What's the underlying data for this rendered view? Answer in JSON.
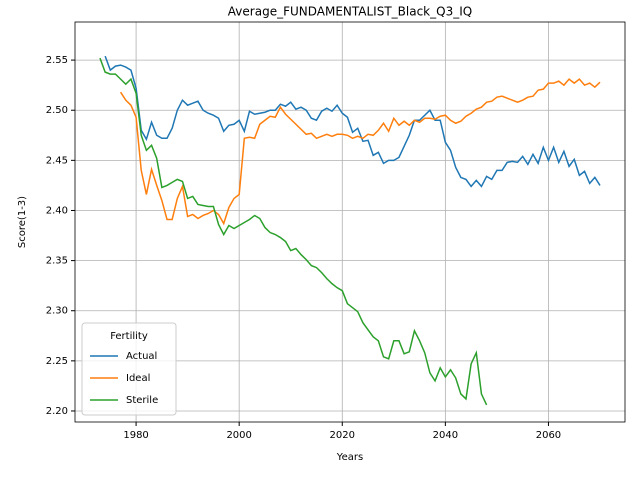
{
  "chart_data": {
    "type": "line",
    "title": "Average_FUNDAMENTALIST_Black_Q3_IQ",
    "x_label": "Years",
    "y_label": "Score(1-3)",
    "x": [
      1973,
      1974,
      1975,
      1976,
      1977,
      1978,
      1979,
      1980,
      1981,
      1982,
      1983,
      1984,
      1985,
      1986,
      1987,
      1988,
      1989,
      1990,
      1991,
      1992,
      1993,
      1994,
      1995,
      1996,
      1997,
      1998,
      1999,
      2000,
      2001,
      2002,
      2003,
      2004,
      2005,
      2006,
      2007,
      2008,
      2009,
      2010,
      2011,
      2012,
      2013,
      2014,
      2015,
      2016,
      2017,
      2018,
      2019,
      2020,
      2021,
      2022,
      2023,
      2024,
      2025,
      2026,
      2027,
      2028,
      2029,
      2030,
      2031,
      2032,
      2033,
      2034,
      2035,
      2036,
      2037,
      2038,
      2039,
      2040,
      2041,
      2042,
      2043,
      2044,
      2045,
      2046,
      2047,
      2048,
      2049,
      2050,
      2051,
      2052,
      2053,
      2054,
      2055,
      2056,
      2057,
      2058,
      2059,
      2060,
      2061,
      2062,
      2063,
      2064,
      2065,
      2066,
      2067,
      2068,
      2069,
      2070
    ],
    "series": [
      {
        "name": "Actual",
        "color": "#1f77b4",
        "values": [
          null,
          2.554,
          2.54,
          2.544,
          2.545,
          2.543,
          2.54,
          2.522,
          2.48,
          2.471,
          2.488,
          2.475,
          2.472,
          2.472,
          2.482,
          2.5,
          2.51,
          2.505,
          2.507,
          2.509,
          2.5,
          2.497,
          2.495,
          2.492,
          2.479,
          2.485,
          2.486,
          2.49,
          2.479,
          2.499,
          2.496,
          2.497,
          2.498,
          2.5,
          2.5,
          2.506,
          2.504,
          2.508,
          2.501,
          2.503,
          2.5,
          2.492,
          2.49,
          2.499,
          2.502,
          2.499,
          2.505,
          2.497,
          2.493,
          2.478,
          2.482,
          2.469,
          2.47,
          2.455,
          2.458,
          2.447,
          2.45,
          2.45,
          2.453,
          2.464,
          2.475,
          2.49,
          2.49,
          2.495,
          2.5,
          2.49,
          2.49,
          2.468,
          2.46,
          2.443,
          2.433,
          2.431,
          2.424,
          2.43,
          2.424,
          2.434,
          2.431,
          2.44,
          2.44,
          2.448,
          2.449,
          2.448,
          2.454,
          2.446,
          2.456,
          2.447,
          2.463,
          2.45,
          2.463,
          2.448,
          2.459,
          2.444,
          2.451,
          2.435,
          2.439,
          2.427,
          2.433,
          2.425
        ]
      },
      {
        "name": "Ideal",
        "color": "#ff7f0e",
        "values": [
          null,
          null,
          null,
          null,
          2.518,
          2.51,
          2.505,
          2.493,
          2.44,
          2.416,
          2.441,
          2.425,
          2.41,
          2.391,
          2.391,
          2.412,
          2.424,
          2.394,
          2.396,
          2.392,
          2.395,
          2.397,
          2.4,
          2.396,
          2.387,
          2.403,
          2.412,
          2.416,
          2.472,
          2.473,
          2.472,
          2.486,
          2.49,
          2.494,
          2.493,
          2.503,
          2.496,
          2.491,
          2.486,
          2.481,
          2.476,
          2.477,
          2.472,
          2.474,
          2.476,
          2.474,
          2.476,
          2.476,
          2.475,
          2.472,
          2.474,
          2.472,
          2.476,
          2.475,
          2.48,
          2.487,
          2.479,
          2.492,
          2.485,
          2.489,
          2.485,
          2.49,
          2.488,
          2.492,
          2.492,
          2.491,
          2.494,
          2.495,
          2.49,
          2.487,
          2.489,
          2.494,
          2.497,
          2.501,
          2.503,
          2.508,
          2.509,
          2.513,
          2.514,
          2.512,
          2.51,
          2.508,
          2.51,
          2.513,
          2.514,
          2.52,
          2.521,
          2.527,
          2.527,
          2.529,
          2.525,
          2.531,
          2.527,
          2.531,
          2.525,
          2.527,
          2.523,
          2.528
        ]
      },
      {
        "name": "Sterile",
        "color": "#2ca02c",
        "values": [
          2.552,
          2.538,
          2.536,
          2.536,
          2.531,
          2.526,
          2.531,
          2.517,
          2.475,
          2.46,
          2.465,
          2.452,
          2.423,
          2.425,
          2.428,
          2.431,
          2.429,
          2.412,
          2.414,
          2.406,
          2.405,
          2.404,
          2.404,
          2.386,
          2.376,
          2.385,
          2.382,
          2.385,
          2.388,
          2.391,
          2.395,
          2.392,
          2.383,
          2.378,
          2.376,
          2.373,
          2.369,
          2.36,
          2.362,
          2.356,
          2.351,
          2.345,
          2.343,
          2.338,
          2.332,
          2.327,
          2.323,
          2.32,
          2.307,
          2.303,
          2.299,
          2.288,
          2.281,
          2.274,
          2.27,
          2.254,
          2.252,
          2.27,
          2.27,
          2.257,
          2.259,
          2.28,
          2.27,
          2.258,
          2.238,
          2.23,
          2.243,
          2.234,
          2.241,
          2.233,
          2.217,
          2.212,
          2.247,
          2.258,
          2.217,
          2.206,
          null,
          null,
          null,
          null,
          null,
          null,
          null,
          null,
          null,
          null,
          null,
          null,
          null,
          null,
          null,
          null,
          null,
          null,
          null,
          null,
          null,
          null
        ]
      }
    ],
    "xlim": [
      1968.15,
      2074.85
    ],
    "xticks": [
      1980,
      2000,
      2020,
      2040,
      2060
    ],
    "ylim": [
      2.189,
      2.588
    ],
    "yticks": [
      {
        "value": 2.2,
        "label": "2.20"
      },
      2.25,
      {
        "value": 2.3,
        "label": "2.30"
      },
      2.35,
      {
        "value": 2.4,
        "label": "2.40"
      },
      2.45,
      {
        "value": 2.5,
        "label": "2.50"
      },
      2.55
    ],
    "grid": true,
    "legend": {
      "title": "Fertility",
      "loc": "lower left"
    }
  }
}
